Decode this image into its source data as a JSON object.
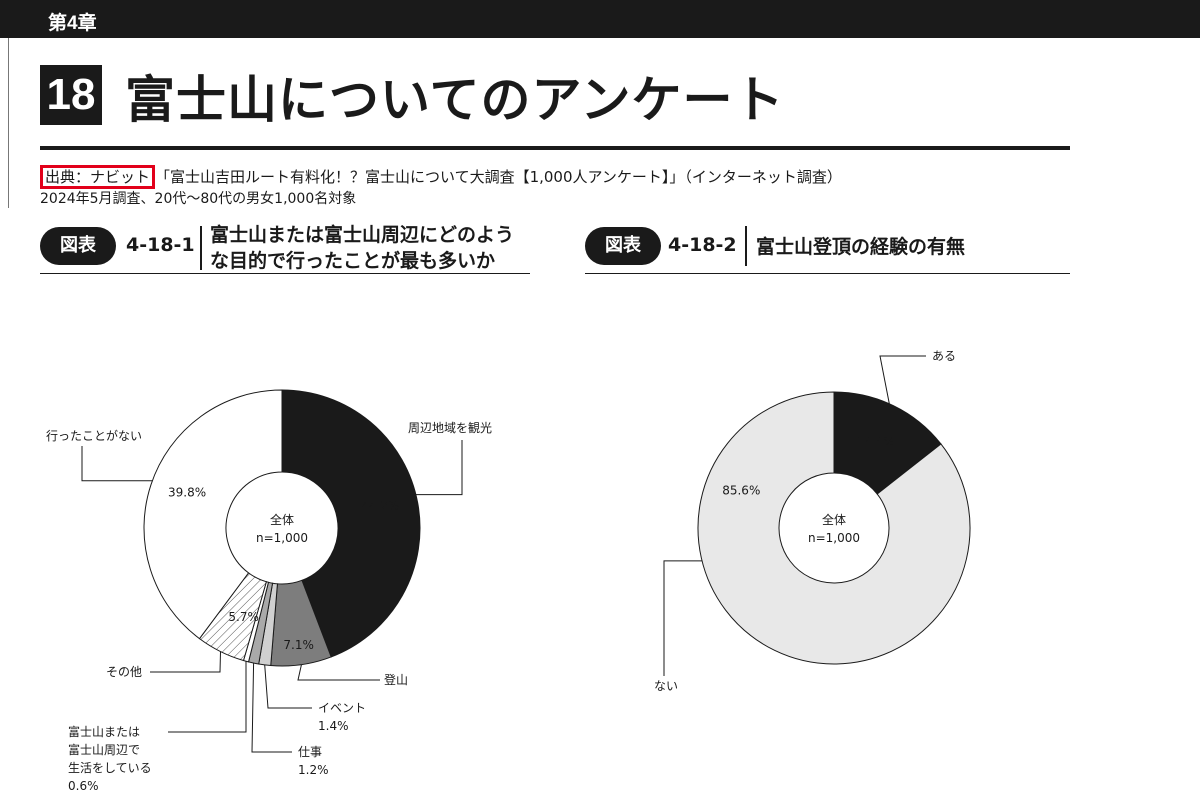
{
  "chapter": {
    "label": "第4章"
  },
  "section": {
    "number": "18",
    "title": "富士山についてのアンケート"
  },
  "source": {
    "tag": "出典：ナビット",
    "text": "「富士山吉田ルート有料化！？富士山について大調査【1,000人アンケート】」（インターネット調査）",
    "date_line": "2024年5月調査、20代～80代の男女1,000名対象"
  },
  "figures": [
    {
      "tag": "図表",
      "number": "4-18-1",
      "title_line1": "富士山または富士山周辺にどのよう",
      "title_line2": "な目的で行ったことが最も多いか"
    },
    {
      "tag": "図表",
      "number": "4-18-2",
      "title_line1": "富士山登頂の経験の有無"
    }
  ],
  "chart_data": [
    {
      "type": "pie",
      "donut": true,
      "center_label": "全体",
      "center_sublabel": "n=1,000",
      "slices": [
        {
          "label": "周辺地域を観光",
          "value": 44.2,
          "value_label": "44.2%",
          "color": "#1a1a1a",
          "text_color": "#ffffff"
        },
        {
          "label": "登山",
          "value": 7.1,
          "value_label": "7.1%",
          "color": "#7d7d7d",
          "text_color": "#ffffff"
        },
        {
          "label": "イベント",
          "value": 1.4,
          "value_label": "1.4%",
          "color": "#d0d0d0"
        },
        {
          "label": "仕事",
          "value": 1.2,
          "value_label": "1.2%",
          "color": "#a9a9a9"
        },
        {
          "label_lines": [
            "富士山または",
            "富士山周辺で",
            "生活をしている"
          ],
          "value": 0.6,
          "value_label": "0.6%",
          "color": "#ffffff"
        },
        {
          "label": "その他",
          "value": 5.7,
          "value_label": "5.7%",
          "color": "hatch"
        },
        {
          "label": "行ったことがない",
          "value": 39.8,
          "value_label": "39.8%",
          "color": "#ffffff"
        }
      ]
    },
    {
      "type": "pie",
      "donut": true,
      "center_label": "全体",
      "center_sublabel": "n=1,000",
      "slices": [
        {
          "label": "ある",
          "value": 14.4,
          "value_label": "14.4%",
          "color": "#1a1a1a",
          "text_color": "#ffffff"
        },
        {
          "label": "ない",
          "value": 85.6,
          "value_label": "85.6%",
          "color": "#e8e8e8"
        }
      ]
    }
  ]
}
